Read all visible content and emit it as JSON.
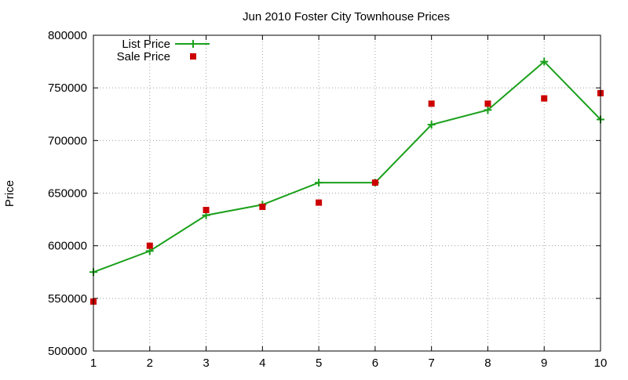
{
  "chart_data": {
    "type": "line",
    "title": "Jun 2010 Foster City Townhouse Prices",
    "xlabel": "",
    "ylabel": "Price",
    "x": [
      1,
      2,
      3,
      4,
      5,
      6,
      7,
      8,
      9,
      10
    ],
    "xlim": [
      1,
      10
    ],
    "ylim": [
      500000,
      800000
    ],
    "xticks": [
      1,
      2,
      3,
      4,
      5,
      6,
      7,
      8,
      9,
      10
    ],
    "yticks": [
      500000,
      550000,
      600000,
      650000,
      700000,
      750000,
      800000
    ],
    "grid": true,
    "legend_position": "top-left",
    "series": [
      {
        "name": "List Price",
        "kind": "line",
        "marker": "plus",
        "color": "#1aa01a",
        "values": [
          575000,
          595000,
          629000,
          639000,
          660000,
          660000,
          715000,
          729000,
          775000,
          720000
        ]
      },
      {
        "name": "Sale Price",
        "kind": "points",
        "marker": "square",
        "color": "#cc0000",
        "values": [
          547000,
          600000,
          634000,
          637000,
          641000,
          660000,
          735000,
          735000,
          740000,
          745000
        ]
      }
    ]
  }
}
